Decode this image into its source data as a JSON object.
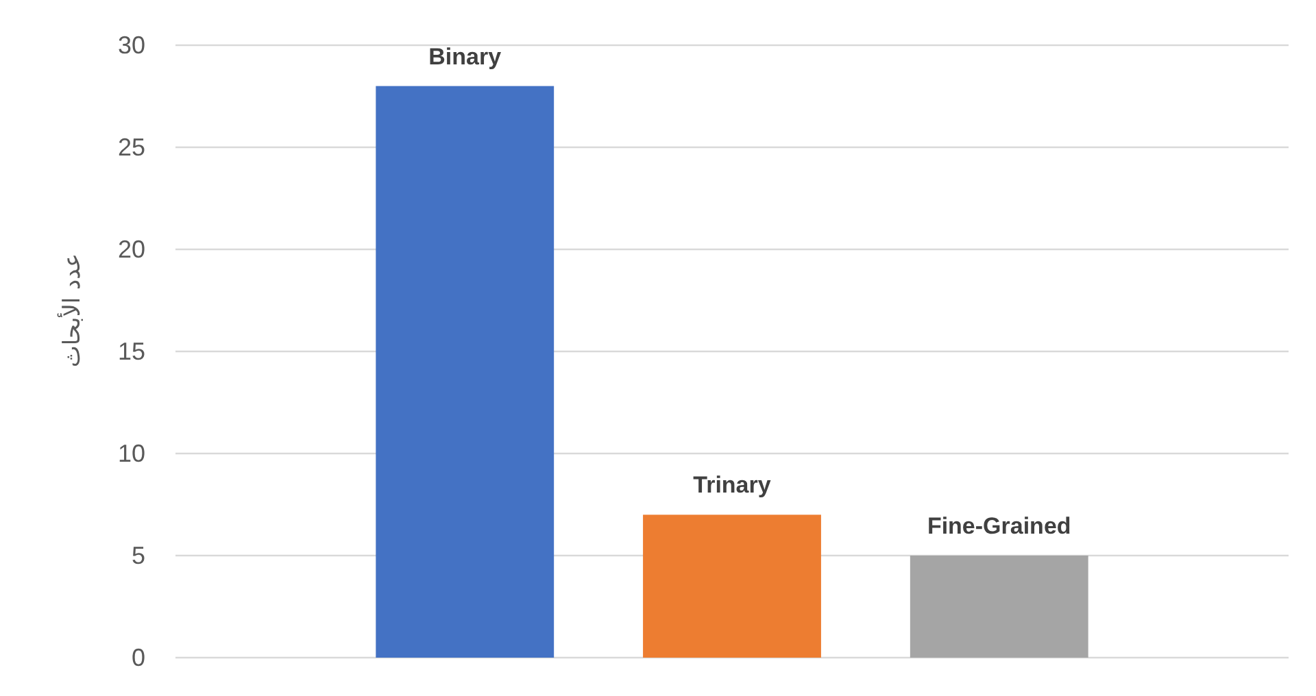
{
  "chart_data": {
    "type": "bar",
    "ylabel": "عدد الأبحاث",
    "categories": [
      null
    ],
    "series": [
      {
        "name": "Binary",
        "color": "#4472c4",
        "values": [
          28
        ]
      },
      {
        "name": "Trinary",
        "color": "#ed7d31",
        "values": [
          7
        ]
      },
      {
        "name": "Fine-Grained",
        "color": "#a5a5a5",
        "values": [
          5
        ]
      }
    ],
    "ylim": [
      0,
      30
    ],
    "yticks": [
      0,
      5,
      10,
      15,
      20,
      25,
      30
    ],
    "grid": "y"
  }
}
